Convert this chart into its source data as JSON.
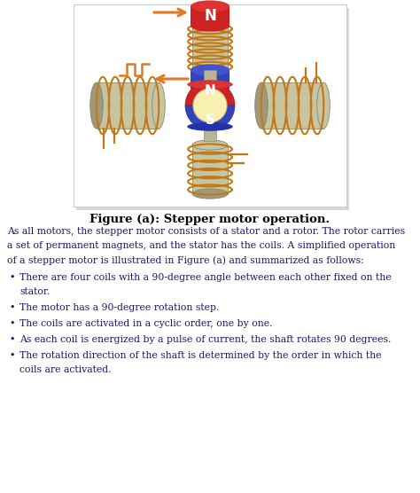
{
  "title": "Figure (a): Stepper motor operation.",
  "body_text": "As all motors, the stepper motor consists of a stator and a rotor. The rotor carries\na set of permanent magnets, and the stator has the coils. A simplified operation\nof a stepper motor is illustrated in Figure (a) and summarized as follows:",
  "bullets": [
    "There are four coils with a 90-degree angle between each other fixed on the stator.",
    "The motor has a 90-degree rotation step.",
    "The coils are activated in a cyclic order, one by one.",
    "As each coil is energized by a pulse of current, the shaft rotates 90 degrees.",
    "The rotation direction of the shaft is determined by the order in which the\ncoils are activated."
  ],
  "bg_color": "#ffffff",
  "panel_bg": "#ffffff",
  "panel_border": "#cccccc",
  "coil_body": "#c8c4a0",
  "coil_dark": "#a09878",
  "wire_color": "#c07818",
  "north_color": "#cc2222",
  "north_top": "#dd3333",
  "south_color": "#3344bb",
  "rotor_fill": "#f8f0b0",
  "rotor_edge": "#c8c090",
  "shaft_color": "#b8b49a",
  "arrow_color": "#e07820",
  "title_color": "#000000",
  "text_color": "#1a1a6e"
}
